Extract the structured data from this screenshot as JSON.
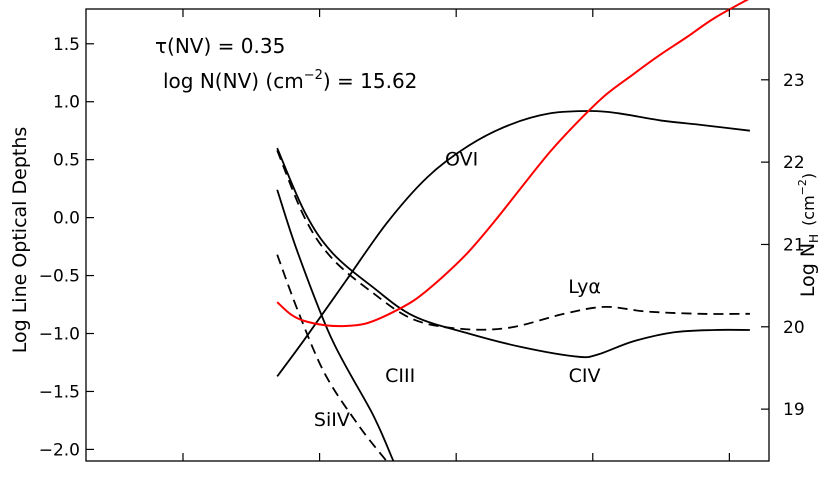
{
  "chart_data": {
    "type": "line",
    "annotations": {
      "line1": "τ(NV) = 0.35",
      "line2_prefix": "log N(NV) (cm",
      "line2_sup": "−2",
      "line2_suffix": ") = 15.62"
    },
    "ylabel_left": "Log Line Optical Depths",
    "ylabel_right_prefix": "Log N",
    "ylabel_right_sub": "H",
    "ylabel_right_units": "(cm",
    "ylabel_right_sup": "−2",
    "ylabel_right_close": ")",
    "xlim": [
      0,
      5
    ],
    "ylim": [
      -2.1,
      1.8
    ],
    "ylim_right": [
      18.37,
      23.86
    ],
    "x_tick_values": [
      0.71,
      1.71,
      2.71,
      3.71,
      4.71
    ],
    "y_ticks": [
      "−2.0",
      "−1.5",
      "−1.0",
      "−0.5",
      "0.0",
      "0.5",
      "1.0",
      "1.5"
    ],
    "y_tick_values": [
      -2.0,
      -1.5,
      -1.0,
      -0.5,
      0.0,
      0.5,
      1.0,
      1.5
    ],
    "y_ticks_right": [
      "19",
      "20",
      "21",
      "22",
      "23"
    ],
    "y_tick_values_right": [
      19,
      20,
      21,
      22,
      23
    ],
    "colors": {
      "axes": "#000000",
      "column_density": "#ff0000",
      "lines": "#000000"
    },
    "series": [
      {
        "name": "CIII",
        "label": "CIII",
        "color": "#000000",
        "dash": false,
        "x": [
          1.4,
          1.55,
          1.8,
          2.1,
          2.25
        ],
        "y": [
          0.24,
          -0.3,
          -1.05,
          -1.7,
          -2.1
        ]
      },
      {
        "name": "SiIV",
        "label": "SiIV",
        "color": "#000000",
        "dash": true,
        "x": [
          1.4,
          1.55,
          1.75,
          2.0,
          2.2
        ],
        "y": [
          -0.32,
          -0.8,
          -1.35,
          -1.8,
          -2.1
        ]
      },
      {
        "name": "CIV",
        "label": "CIV",
        "color": "#000000",
        "dash": false,
        "x": [
          1.4,
          1.6,
          1.8,
          2.1,
          2.4,
          2.8,
          3.2,
          3.6,
          3.75,
          4.0,
          4.3,
          4.6,
          4.86
        ],
        "y": [
          0.6,
          0.05,
          -0.3,
          -0.6,
          -0.85,
          -1.0,
          -1.12,
          -1.2,
          -1.18,
          -1.07,
          -0.99,
          -0.97,
          -0.97
        ]
      },
      {
        "name": "Ly-alpha",
        "label": "Lyα",
        "color": "#000000",
        "dash": true,
        "x": [
          1.4,
          1.6,
          1.8,
          2.1,
          2.4,
          2.75,
          3.1,
          3.5,
          3.8,
          4.1,
          4.5,
          4.86
        ],
        "y": [
          0.58,
          0.0,
          -0.35,
          -0.65,
          -0.88,
          -0.96,
          -0.95,
          -0.83,
          -0.77,
          -0.81,
          -0.83,
          -0.83
        ]
      },
      {
        "name": "OVI",
        "label": "OVI",
        "color": "#000000",
        "dash": false,
        "x": [
          1.4,
          1.6,
          1.9,
          2.2,
          2.5,
          2.8,
          3.1,
          3.4,
          3.7,
          3.9,
          4.2,
          4.5,
          4.86
        ],
        "y": [
          -1.37,
          -1.05,
          -0.55,
          -0.05,
          0.35,
          0.62,
          0.8,
          0.9,
          0.92,
          0.9,
          0.84,
          0.8,
          0.75
        ]
      },
      {
        "name": "log NH",
        "color": "#ff0000",
        "dash": false,
        "axis": "right",
        "x": [
          1.4,
          1.5,
          1.6,
          1.75,
          1.9,
          2.05,
          2.2,
          2.4,
          2.6,
          2.8,
          3.0,
          3.2,
          3.4,
          3.6,
          3.8,
          4.0,
          4.2,
          4.4,
          4.6,
          4.86
        ],
        "y": [
          20.3,
          20.15,
          20.07,
          20.02,
          20.01,
          20.04,
          20.14,
          20.32,
          20.59,
          20.91,
          21.3,
          21.72,
          22.13,
          22.49,
          22.81,
          23.06,
          23.3,
          23.52,
          23.75,
          23.99
        ]
      }
    ]
  }
}
